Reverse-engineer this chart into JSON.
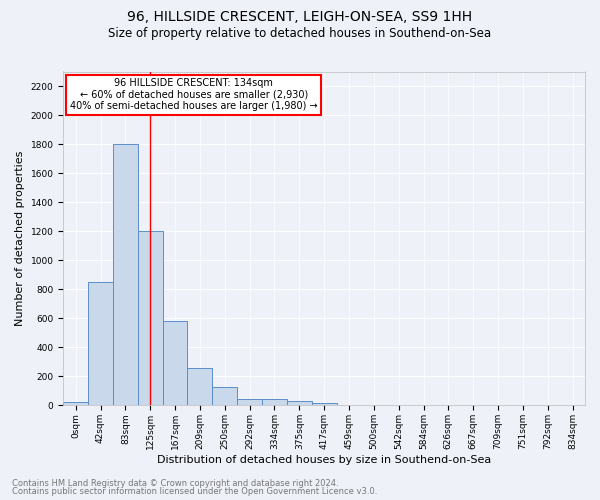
{
  "title1": "96, HILLSIDE CRESCENT, LEIGH-ON-SEA, SS9 1HH",
  "title2": "Size of property relative to detached houses in Southend-on-Sea",
  "xlabel": "Distribution of detached houses by size in Southend-on-Sea",
  "ylabel": "Number of detached properties",
  "footnote1": "Contains HM Land Registry data © Crown copyright and database right 2024.",
  "footnote2": "Contains public sector information licensed under the Open Government Licence v3.0.",
  "bin_labels": [
    "0sqm",
    "42sqm",
    "83sqm",
    "125sqm",
    "167sqm",
    "209sqm",
    "250sqm",
    "292sqm",
    "334sqm",
    "375sqm",
    "417sqm",
    "459sqm",
    "500sqm",
    "542sqm",
    "584sqm",
    "626sqm",
    "667sqm",
    "709sqm",
    "751sqm",
    "792sqm",
    "834sqm"
  ],
  "bar_heights": [
    25,
    850,
    1800,
    1200,
    580,
    255,
    130,
    45,
    45,
    28,
    18,
    0,
    0,
    0,
    0,
    0,
    0,
    0,
    0,
    0,
    0
  ],
  "bar_color": "#c9d9eb",
  "bar_edge_color": "#5b8fc9",
  "red_line_x": 3,
  "annotation_text": "96 HILLSIDE CRESCENT: 134sqm\n← 60% of detached houses are smaller (2,930)\n40% of semi-detached houses are larger (1,980) →",
  "annotation_box_color": "white",
  "annotation_box_edge": "red",
  "ylim": [
    0,
    2300
  ],
  "yticks": [
    0,
    200,
    400,
    600,
    800,
    1000,
    1200,
    1400,
    1600,
    1800,
    2000,
    2200
  ],
  "bg_color": "#eef2f8",
  "plot_bg_color": "#eef2f8",
  "grid_color": "white",
  "title1_fontsize": 10,
  "title2_fontsize": 8.5,
  "xlabel_fontsize": 8,
  "ylabel_fontsize": 8,
  "tick_fontsize": 6.5,
  "footnote_fontsize": 6,
  "annot_fontsize": 7
}
